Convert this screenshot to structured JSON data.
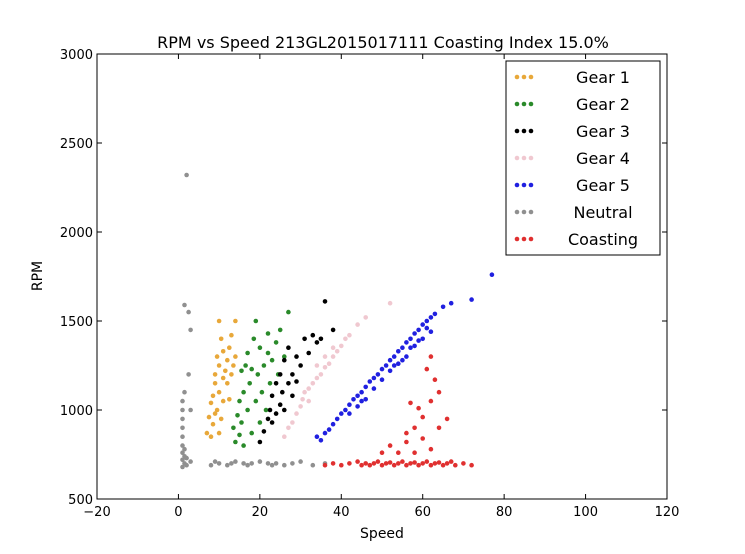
{
  "chart_data": {
    "type": "scatter",
    "title": "RPM vs Speed 213GL2015017111 Coasting Index 15.0%",
    "xlabel": "Speed",
    "ylabel": "RPM",
    "xlim": [
      -20,
      120
    ],
    "ylim": [
      500,
      3000
    ],
    "xticks": [
      -20,
      0,
      20,
      40,
      60,
      80,
      100,
      120
    ],
    "yticks": [
      500,
      1000,
      1500,
      2000,
      2500,
      3000
    ],
    "xtick_labels": [
      "−20",
      "0",
      "20",
      "40",
      "60",
      "80",
      "100",
      "120"
    ],
    "ytick_labels": [
      "500",
      "1000",
      "1500",
      "2000",
      "2500",
      "3000"
    ],
    "grid": false,
    "legend_position": "top-right",
    "series": [
      {
        "name": "Gear 1",
        "color": "#e8a83a",
        "points": [
          [
            7,
            870
          ],
          [
            7.5,
            960
          ],
          [
            8,
            850
          ],
          [
            8,
            1040
          ],
          [
            8.5,
            920
          ],
          [
            8.5,
            1080
          ],
          [
            9,
            1150
          ],
          [
            9,
            980
          ],
          [
            9,
            1200
          ],
          [
            9.5,
            1300
          ],
          [
            9.5,
            1000
          ],
          [
            10,
            870
          ],
          [
            10,
            1100
          ],
          [
            10,
            1250
          ],
          [
            10,
            1500
          ],
          [
            10.5,
            950
          ],
          [
            10.5,
            1400
          ],
          [
            11,
            1050
          ],
          [
            11,
            1180
          ],
          [
            11,
            1330
          ],
          [
            11.5,
            1220
          ],
          [
            12,
            1280
          ],
          [
            12,
            1150
          ],
          [
            12.5,
            1350
          ],
          [
            12.5,
            1060
          ],
          [
            13,
            1200
          ],
          [
            13,
            1420
          ],
          [
            13.5,
            1250
          ],
          [
            14,
            1300
          ],
          [
            14,
            1500
          ]
        ]
      },
      {
        "name": "Gear 2",
        "color": "#2a8a2a",
        "points": [
          [
            13.5,
            900
          ],
          [
            14,
            820
          ],
          [
            14.5,
            970
          ],
          [
            15,
            860
          ],
          [
            15,
            1050
          ],
          [
            15.5,
            930
          ],
          [
            15.5,
            1220
          ],
          [
            16,
            1100
          ],
          [
            16,
            800
          ],
          [
            16.5,
            1250
          ],
          [
            17,
            1000
          ],
          [
            17,
            1320
          ],
          [
            17.5,
            1150
          ],
          [
            18,
            870
          ],
          [
            18,
            1230
          ],
          [
            18.5,
            1400
          ],
          [
            19,
            1050
          ],
          [
            19,
            1500
          ],
          [
            19.5,
            1200
          ],
          [
            20,
            930
          ],
          [
            20,
            1350
          ],
          [
            20.5,
            1100
          ],
          [
            21,
            1250
          ],
          [
            21.5,
            1000
          ],
          [
            22,
            1320
          ],
          [
            22,
            1430
          ],
          [
            22.5,
            1150
          ],
          [
            23,
            1280
          ],
          [
            24,
            1380
          ],
          [
            24.5,
            1200
          ],
          [
            25,
            1450
          ],
          [
            26,
            1300
          ],
          [
            27,
            1550
          ]
        ]
      },
      {
        "name": "Gear 3",
        "color": "#000000",
        "points": [
          [
            20,
            820
          ],
          [
            21,
            880
          ],
          [
            22,
            950
          ],
          [
            22.5,
            1000
          ],
          [
            23,
            930
          ],
          [
            23,
            1080
          ],
          [
            24,
            980
          ],
          [
            24,
            1150
          ],
          [
            25,
            1030
          ],
          [
            25,
            1200
          ],
          [
            25.5,
            1100
          ],
          [
            26,
            1000
          ],
          [
            26,
            1280
          ],
          [
            27,
            1150
          ],
          [
            27,
            1350
          ],
          [
            28,
            1200
          ],
          [
            28,
            1080
          ],
          [
            29,
            1300
          ],
          [
            29,
            1160
          ],
          [
            30,
            1250
          ],
          [
            31,
            1400
          ],
          [
            32,
            1320
          ],
          [
            33,
            1420
          ],
          [
            34,
            1380
          ],
          [
            35,
            1400
          ],
          [
            36,
            1610
          ],
          [
            38,
            1450
          ]
        ]
      },
      {
        "name": "Gear 4",
        "color": "#f0c8d0",
        "points": [
          [
            26,
            850
          ],
          [
            27,
            900
          ],
          [
            28,
            930
          ],
          [
            29,
            980
          ],
          [
            30,
            1020
          ],
          [
            30.5,
            1060
          ],
          [
            31,
            1100
          ],
          [
            32,
            1120
          ],
          [
            32,
            1050
          ],
          [
            33,
            1150
          ],
          [
            34,
            1180
          ],
          [
            34,
            1250
          ],
          [
            35,
            1200
          ],
          [
            36,
            1240
          ],
          [
            36,
            1300
          ],
          [
            37,
            1260
          ],
          [
            38,
            1300
          ],
          [
            38,
            1350
          ],
          [
            39,
            1330
          ],
          [
            40,
            1360
          ],
          [
            41,
            1400
          ],
          [
            42,
            1420
          ],
          [
            44,
            1480
          ],
          [
            46,
            1520
          ],
          [
            52,
            1600
          ]
        ]
      },
      {
        "name": "Gear 5",
        "color": "#2020e0",
        "points": [
          [
            34,
            850
          ],
          [
            35,
            830
          ],
          [
            36,
            870
          ],
          [
            37,
            890
          ],
          [
            38,
            920
          ],
          [
            39,
            950
          ],
          [
            40,
            980
          ],
          [
            41,
            1000
          ],
          [
            42,
            1030
          ],
          [
            43,
            1060
          ],
          [
            44,
            1080
          ],
          [
            45,
            1100
          ],
          [
            46,
            1130
          ],
          [
            47,
            1160
          ],
          [
            48,
            1180
          ],
          [
            49,
            1200
          ],
          [
            50,
            1230
          ],
          [
            51,
            1250
          ],
          [
            52,
            1280
          ],
          [
            53,
            1300
          ],
          [
            54,
            1330
          ],
          [
            55,
            1350
          ],
          [
            56,
            1380
          ],
          [
            57,
            1400
          ],
          [
            58,
            1430
          ],
          [
            59,
            1450
          ],
          [
            60,
            1480
          ],
          [
            61,
            1500
          ],
          [
            62,
            1520
          ],
          [
            63,
            1540
          ],
          [
            65,
            1580
          ],
          [
            67,
            1600
          ],
          [
            72,
            1620
          ],
          [
            77,
            1760
          ],
          [
            44,
            1020
          ],
          [
            46,
            1060
          ],
          [
            48,
            1120
          ],
          [
            50,
            1170
          ],
          [
            52,
            1220
          ],
          [
            54,
            1260
          ],
          [
            56,
            1300
          ],
          [
            58,
            1360
          ],
          [
            60,
            1400
          ],
          [
            62,
            1440
          ],
          [
            42,
            980
          ],
          [
            45,
            1050
          ],
          [
            53,
            1250
          ],
          [
            57,
            1350
          ],
          [
            61,
            1460
          ],
          [
            55,
            1280
          ],
          [
            59,
            1390
          ]
        ]
      },
      {
        "name": "Neutral",
        "color": "#909090",
        "points": [
          [
            1,
            680
          ],
          [
            1,
            720
          ],
          [
            1,
            760
          ],
          [
            1,
            800
          ],
          [
            1,
            850
          ],
          [
            1,
            900
          ],
          [
            1,
            950
          ],
          [
            1,
            1000
          ],
          [
            1,
            1050
          ],
          [
            1.5,
            700
          ],
          [
            1.5,
            740
          ],
          [
            1.5,
            780
          ],
          [
            1.5,
            1100
          ],
          [
            1.5,
            1590
          ],
          [
            2,
            690
          ],
          [
            2,
            730
          ],
          [
            2,
            2320
          ],
          [
            2.5,
            1200
          ],
          [
            2.5,
            1550
          ],
          [
            3,
            710
          ],
          [
            3,
            1450
          ],
          [
            3,
            1000
          ],
          [
            8,
            690
          ],
          [
            9,
            710
          ],
          [
            10,
            700
          ],
          [
            12,
            690
          ],
          [
            13,
            700
          ],
          [
            14,
            710
          ],
          [
            16,
            700
          ],
          [
            17,
            690
          ],
          [
            18,
            700
          ],
          [
            20,
            710
          ],
          [
            22,
            700
          ],
          [
            23,
            690
          ],
          [
            24,
            700
          ],
          [
            26,
            690
          ],
          [
            28,
            700
          ],
          [
            30,
            710
          ],
          [
            33,
            690
          ],
          [
            36,
            700
          ]
        ]
      },
      {
        "name": "Coasting",
        "color": "#e03030",
        "points": [
          [
            36,
            690
          ],
          [
            38,
            700
          ],
          [
            40,
            690
          ],
          [
            42,
            700
          ],
          [
            44,
            710
          ],
          [
            45,
            690
          ],
          [
            46,
            700
          ],
          [
            47,
            690
          ],
          [
            48,
            700
          ],
          [
            49,
            710
          ],
          [
            50,
            690
          ],
          [
            51,
            700
          ],
          [
            52,
            705
          ],
          [
            53,
            690
          ],
          [
            54,
            700
          ],
          [
            55,
            710
          ],
          [
            56,
            690
          ],
          [
            57,
            700
          ],
          [
            58,
            705
          ],
          [
            59,
            690
          ],
          [
            60,
            700
          ],
          [
            61,
            710
          ],
          [
            62,
            690
          ],
          [
            63,
            700
          ],
          [
            64,
            705
          ],
          [
            65,
            690
          ],
          [
            66,
            700
          ],
          [
            67,
            710
          ],
          [
            68,
            690
          ],
          [
            70,
            700
          ],
          [
            72,
            690
          ],
          [
            50,
            760
          ],
          [
            52,
            800
          ],
          [
            54,
            760
          ],
          [
            56,
            820
          ],
          [
            58,
            760
          ],
          [
            60,
            840
          ],
          [
            62,
            780
          ],
          [
            64,
            900
          ],
          [
            66,
            950
          ],
          [
            60,
            960
          ],
          [
            62,
            1050
          ],
          [
            64,
            1100
          ],
          [
            58,
            900
          ],
          [
            56,
            870
          ],
          [
            61,
            1230
          ],
          [
            62,
            1300
          ],
          [
            63,
            1170
          ],
          [
            57,
            1040
          ],
          [
            59,
            1010
          ]
        ]
      }
    ]
  }
}
